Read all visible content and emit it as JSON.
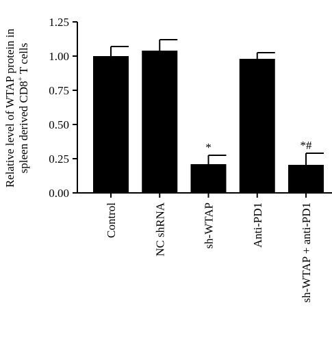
{
  "chart_data": {
    "type": "bar",
    "title": "",
    "xlabel": "",
    "ylabel_line1": "Relative level of WTAP protein in",
    "ylabel_line2_prefix": "spleen derived CD8",
    "ylabel_line2_sup": "+",
    "ylabel_line2_suffix": " T cells",
    "ylim": [
      0,
      1.25
    ],
    "yticks": [
      "0.00",
      "0.25",
      "0.50",
      "0.75",
      "1.00",
      "1.25"
    ],
    "categories": [
      "Control",
      "NC shRNA",
      "sh-WTAP",
      "Anti-PD1",
      "sh-WTAP + anti-PD1"
    ],
    "values": [
      1.0,
      1.04,
      0.21,
      0.98,
      0.205
    ],
    "errors": [
      0.07,
      0.08,
      0.065,
      0.045,
      0.085
    ],
    "annotations": [
      "",
      "",
      "*",
      "",
      "*#"
    ],
    "bar_color": "#000000",
    "grid": false
  }
}
